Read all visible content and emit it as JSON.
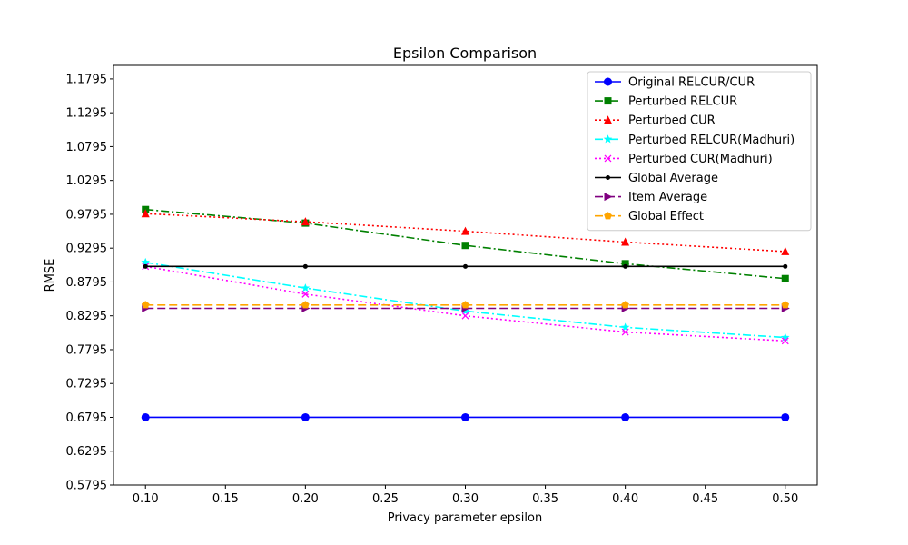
{
  "chart_data": {
    "type": "line",
    "title": "Epsilon Comparison",
    "xlabel": "Privacy parameter epsilon",
    "ylabel": "RMSE",
    "xlim": [
      0.08,
      0.52
    ],
    "ylim": [
      0.5795,
      1.1995
    ],
    "xticks": [
      "0.10",
      "0.15",
      "0.20",
      "0.25",
      "0.30",
      "0.35",
      "0.40",
      "0.45",
      "0.50"
    ],
    "yticks": [
      "0.5795",
      "0.6295",
      "0.6795",
      "0.7295",
      "0.7795",
      "0.8295",
      "0.8795",
      "0.9295",
      "0.9795",
      "1.0295",
      "1.0795",
      "1.1295",
      "1.1795"
    ],
    "x": [
      0.1,
      0.2,
      0.3,
      0.4,
      0.5
    ],
    "grid": false,
    "legend_position": "top-right",
    "series": [
      {
        "name": "Original RELCUR/CUR",
        "values": [
          0.6795,
          0.6795,
          0.6795,
          0.6795,
          0.6795
        ],
        "color": "#0000ff",
        "dash": "solid",
        "marker": "circle"
      },
      {
        "name": "Perturbed RELCUR",
        "values": [
          0.9865,
          0.9665,
          0.9335,
          0.9065,
          0.8845
        ],
        "color": "#008000",
        "dash": "dashdot",
        "marker": "square"
      },
      {
        "name": "Perturbed CUR",
        "values": [
          0.9805,
          0.9685,
          0.9545,
          0.9385,
          0.9245
        ],
        "color": "#ff0000",
        "dash": "dotted",
        "marker": "triangle"
      },
      {
        "name": "Perturbed RELCUR(Madhuri)",
        "values": [
          0.9085,
          0.8705,
          0.8365,
          0.8125,
          0.7975
        ],
        "color": "#00ffff",
        "dash": "dashdot",
        "marker": "star"
      },
      {
        "name": "Perturbed CUR(Madhuri)",
        "values": [
          0.9025,
          0.8615,
          0.8295,
          0.8055,
          0.7925
        ],
        "color": "#ff00ff",
        "dash": "dotted",
        "marker": "x"
      },
      {
        "name": "Global Average",
        "values": [
          0.9025,
          0.9025,
          0.9025,
          0.9025,
          0.9025
        ],
        "color": "#000000",
        "dash": "solid",
        "marker": "dot"
      },
      {
        "name": "Item Average",
        "values": [
          0.8405,
          0.8405,
          0.8405,
          0.8405,
          0.8405
        ],
        "color": "#800080",
        "dash": "dashed",
        "marker": "triangle-right"
      },
      {
        "name": "Global Effect",
        "values": [
          0.8455,
          0.8455,
          0.8455,
          0.8455,
          0.8455
        ],
        "color": "#ffa500",
        "dash": "dashed",
        "marker": "pentagon"
      }
    ]
  }
}
